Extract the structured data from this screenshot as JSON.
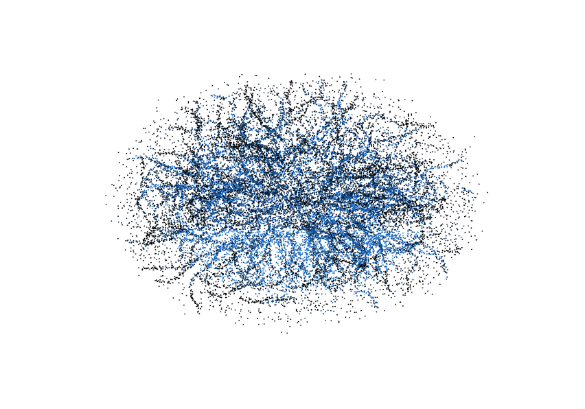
{
  "chart_data": {
    "type": "scatter",
    "projection": "3d",
    "axes_visible": false,
    "grid": false,
    "legend": "none",
    "title": "",
    "xlabel": "",
    "ylabel": "",
    "zlabel": "",
    "series": [
      {
        "marker": "dot",
        "color_scale": [
          "#000000",
          "#0b2a4d",
          "#0f4f96",
          "#1366c8",
          "#2f8ae0"
        ],
        "point_count_estimate": 20000
      }
    ]
  }
}
